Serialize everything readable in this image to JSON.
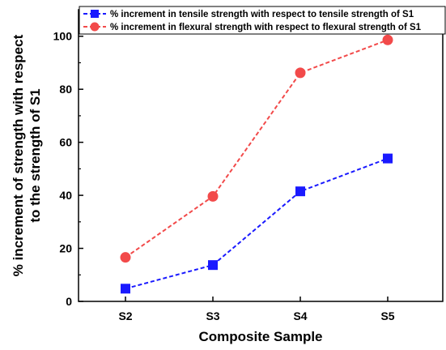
{
  "chart_data": {
    "type": "line",
    "categories": [
      "S2",
      "S3",
      "S4",
      "S5"
    ],
    "series": [
      {
        "name": "% increment in tensile strength with respect to tensile strength of S1",
        "values": [
          4.8,
          13.7,
          41.5,
          53.9
        ],
        "color": "#1a1aff",
        "marker": "square",
        "line_style": "dashed"
      },
      {
        "name": "% increment in flexural strength with respect to flexural strength of S1",
        "values": [
          16.6,
          39.6,
          86.2,
          98.6
        ],
        "color": "#f24a4a",
        "marker": "circle",
        "line_style": "dashed"
      }
    ],
    "xlabel": "Composite Sample",
    "ylabel_line1": "% increment of strength with respect",
    "ylabel_line2": "to the strength of S1",
    "ylim": [
      0,
      110
    ],
    "yticks": [
      0,
      20,
      40,
      60,
      80,
      100
    ],
    "grid": false,
    "legend_position": "top"
  }
}
